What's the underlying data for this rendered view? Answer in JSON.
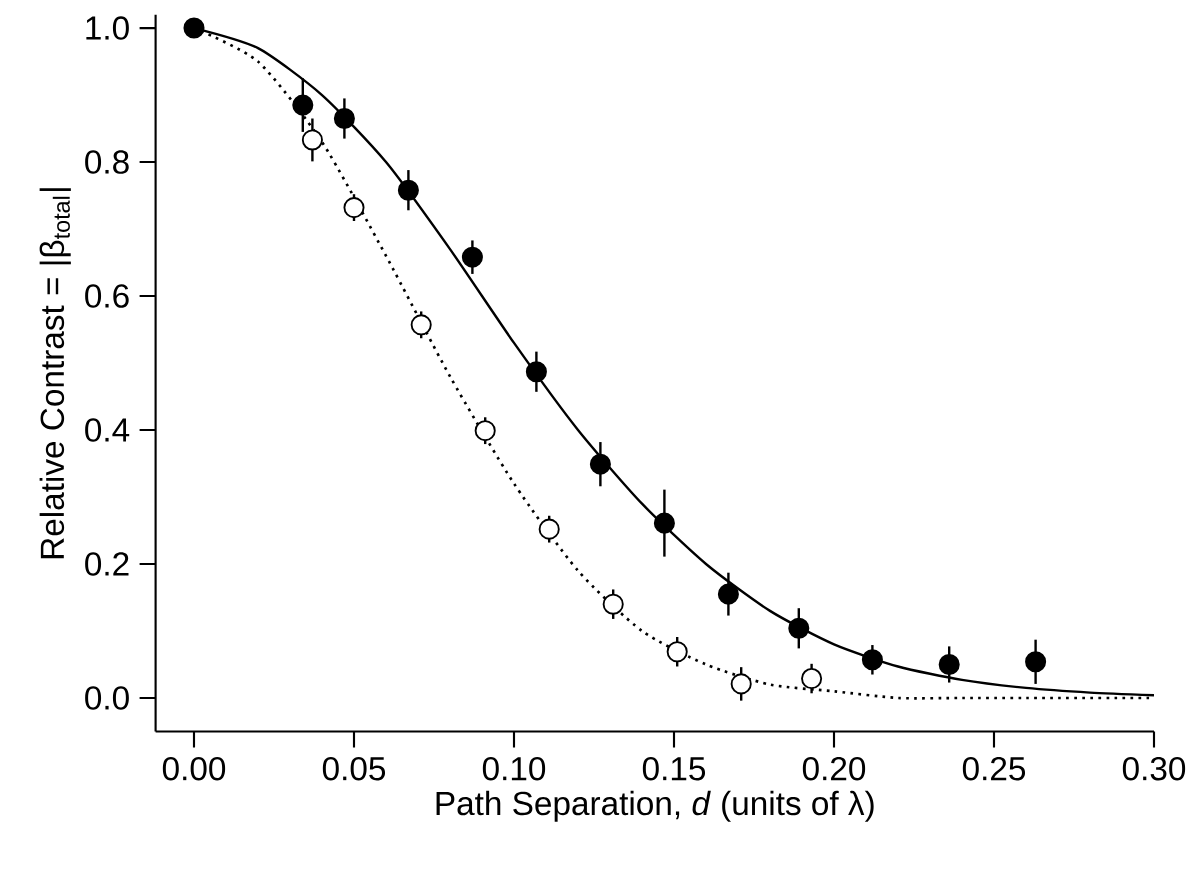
{
  "chart_data": {
    "type": "scatter",
    "xlabel": "Path Separation, *d* (units of λ)",
    "ylabel": "Relative Contrast = |β$_{total}$|",
    "xlim": [
      -0.012,
      0.3
    ],
    "ylim": [
      -0.05,
      1.02
    ],
    "xticks": [
      {
        "value": 0,
        "label": "0.00"
      },
      {
        "value": 0.05,
        "label": "0.05"
      },
      {
        "value": 0.1,
        "label": "0.10"
      },
      {
        "value": 0.15,
        "label": "0.15"
      },
      {
        "value": 0.2,
        "label": "0.20"
      },
      {
        "value": 0.25,
        "label": "0.25"
      },
      {
        "value": 0.3,
        "label": "0.30"
      }
    ],
    "yticks": [
      {
        "value": 0,
        "label": "0.0"
      },
      {
        "value": 0.2,
        "label": "0.2"
      },
      {
        "value": 0.4,
        "label": "0.4"
      },
      {
        "value": 0.6,
        "label": "0.6"
      },
      {
        "value": 0.8,
        "label": "0.8"
      },
      {
        "value": 1,
        "label": "1.0"
      }
    ],
    "series": [
      {
        "color": "#000000",
        "marker": "circle",
        "x": [
          0,
          0.034,
          0.047,
          0.067,
          0.087,
          0.107,
          0.127,
          0.147,
          0.167,
          0.189,
          0.212,
          0.236,
          0.263
        ],
        "values": [
          1.0,
          0.885,
          0.865,
          0.758,
          0.658,
          0.487,
          0.349,
          0.261,
          0.155,
          0.104,
          0.057,
          0.05,
          0.054
        ],
        "errors": [
          null,
          0.04,
          0.03,
          0.03,
          0.025,
          0.03,
          0.033,
          0.05,
          0.032,
          0.03,
          0.022,
          0.027,
          0.033
        ]
      },
      {
        "color": "#ffffff",
        "marker": "circle",
        "x": [
          0.037,
          0.05,
          0.071,
          0.091,
          0.111,
          0.131,
          0.151,
          0.171,
          0.193
        ],
        "values": [
          0.833,
          0.732,
          0.557,
          0.399,
          0.252,
          0.14,
          0.069,
          0.021,
          0.029
        ],
        "errors": [
          0.032,
          0.02,
          0.02,
          0.02,
          0.02,
          0.022,
          0.022,
          0.025,
          0.022
        ]
      },
      {
        "type": "line",
        "color": "#000000",
        "line_style": "solid",
        "marker": "none",
        "x": [
          0,
          0.02,
          0.04,
          0.06,
          0.08,
          0.1,
          0.12,
          0.14,
          0.16,
          0.18,
          0.2,
          0.22,
          0.24,
          0.26,
          0.28,
          0.3
        ],
        "values": [
          1.0,
          0.97,
          0.9,
          0.8,
          0.67,
          0.53,
          0.4,
          0.29,
          0.2,
          0.13,
          0.08,
          0.047,
          0.027,
          0.015,
          0.008,
          0.004
        ]
      },
      {
        "type": "line",
        "color": "#000000",
        "line_style": "dotted",
        "marker": "none",
        "x": [
          0,
          0.02,
          0.04,
          0.06,
          0.08,
          0.1,
          0.12,
          0.14,
          0.16,
          0.18,
          0.2,
          0.22,
          0.24,
          0.26,
          0.3
        ],
        "values": [
          1.0,
          0.95,
          0.83,
          0.66,
          0.48,
          0.32,
          0.19,
          0.1,
          0.05,
          0.02,
          0.01,
          0.0,
          0.0,
          0.0,
          0.0
        ]
      }
    ]
  }
}
